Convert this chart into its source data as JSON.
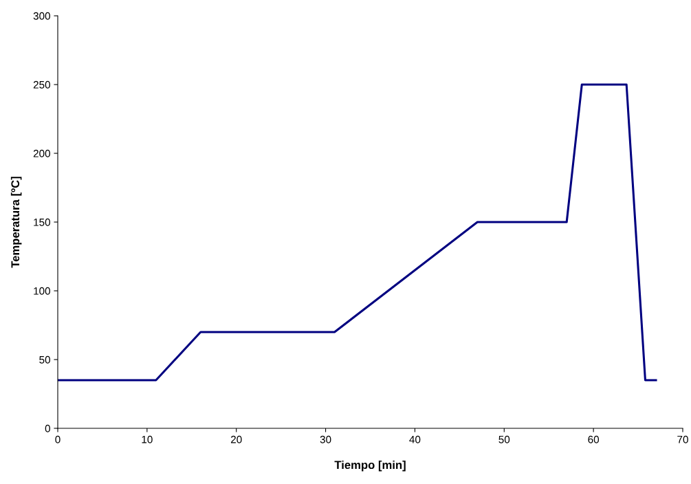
{
  "chart_data": {
    "type": "line",
    "xlabel": "Tiempo [min]",
    "ylabel": "Temperatura [ºC]",
    "series": [
      {
        "color": "#000080",
        "x": [
          0,
          11,
          16,
          31,
          47,
          57,
          58.7,
          63.7,
          65.8,
          67
        ],
        "values": [
          35,
          35,
          70,
          70,
          150,
          150,
          250,
          250,
          35,
          35
        ]
      }
    ],
    "xlim": [
      0,
      70
    ],
    "xticks": [
      0,
      10,
      20,
      30,
      40,
      50,
      60,
      70
    ],
    "ylim": [
      0,
      300
    ],
    "yticks": [
      0,
      50,
      100,
      150,
      200,
      250,
      300
    ],
    "grid": false,
    "legend": false,
    "marker": "none",
    "line_style": "solid"
  }
}
